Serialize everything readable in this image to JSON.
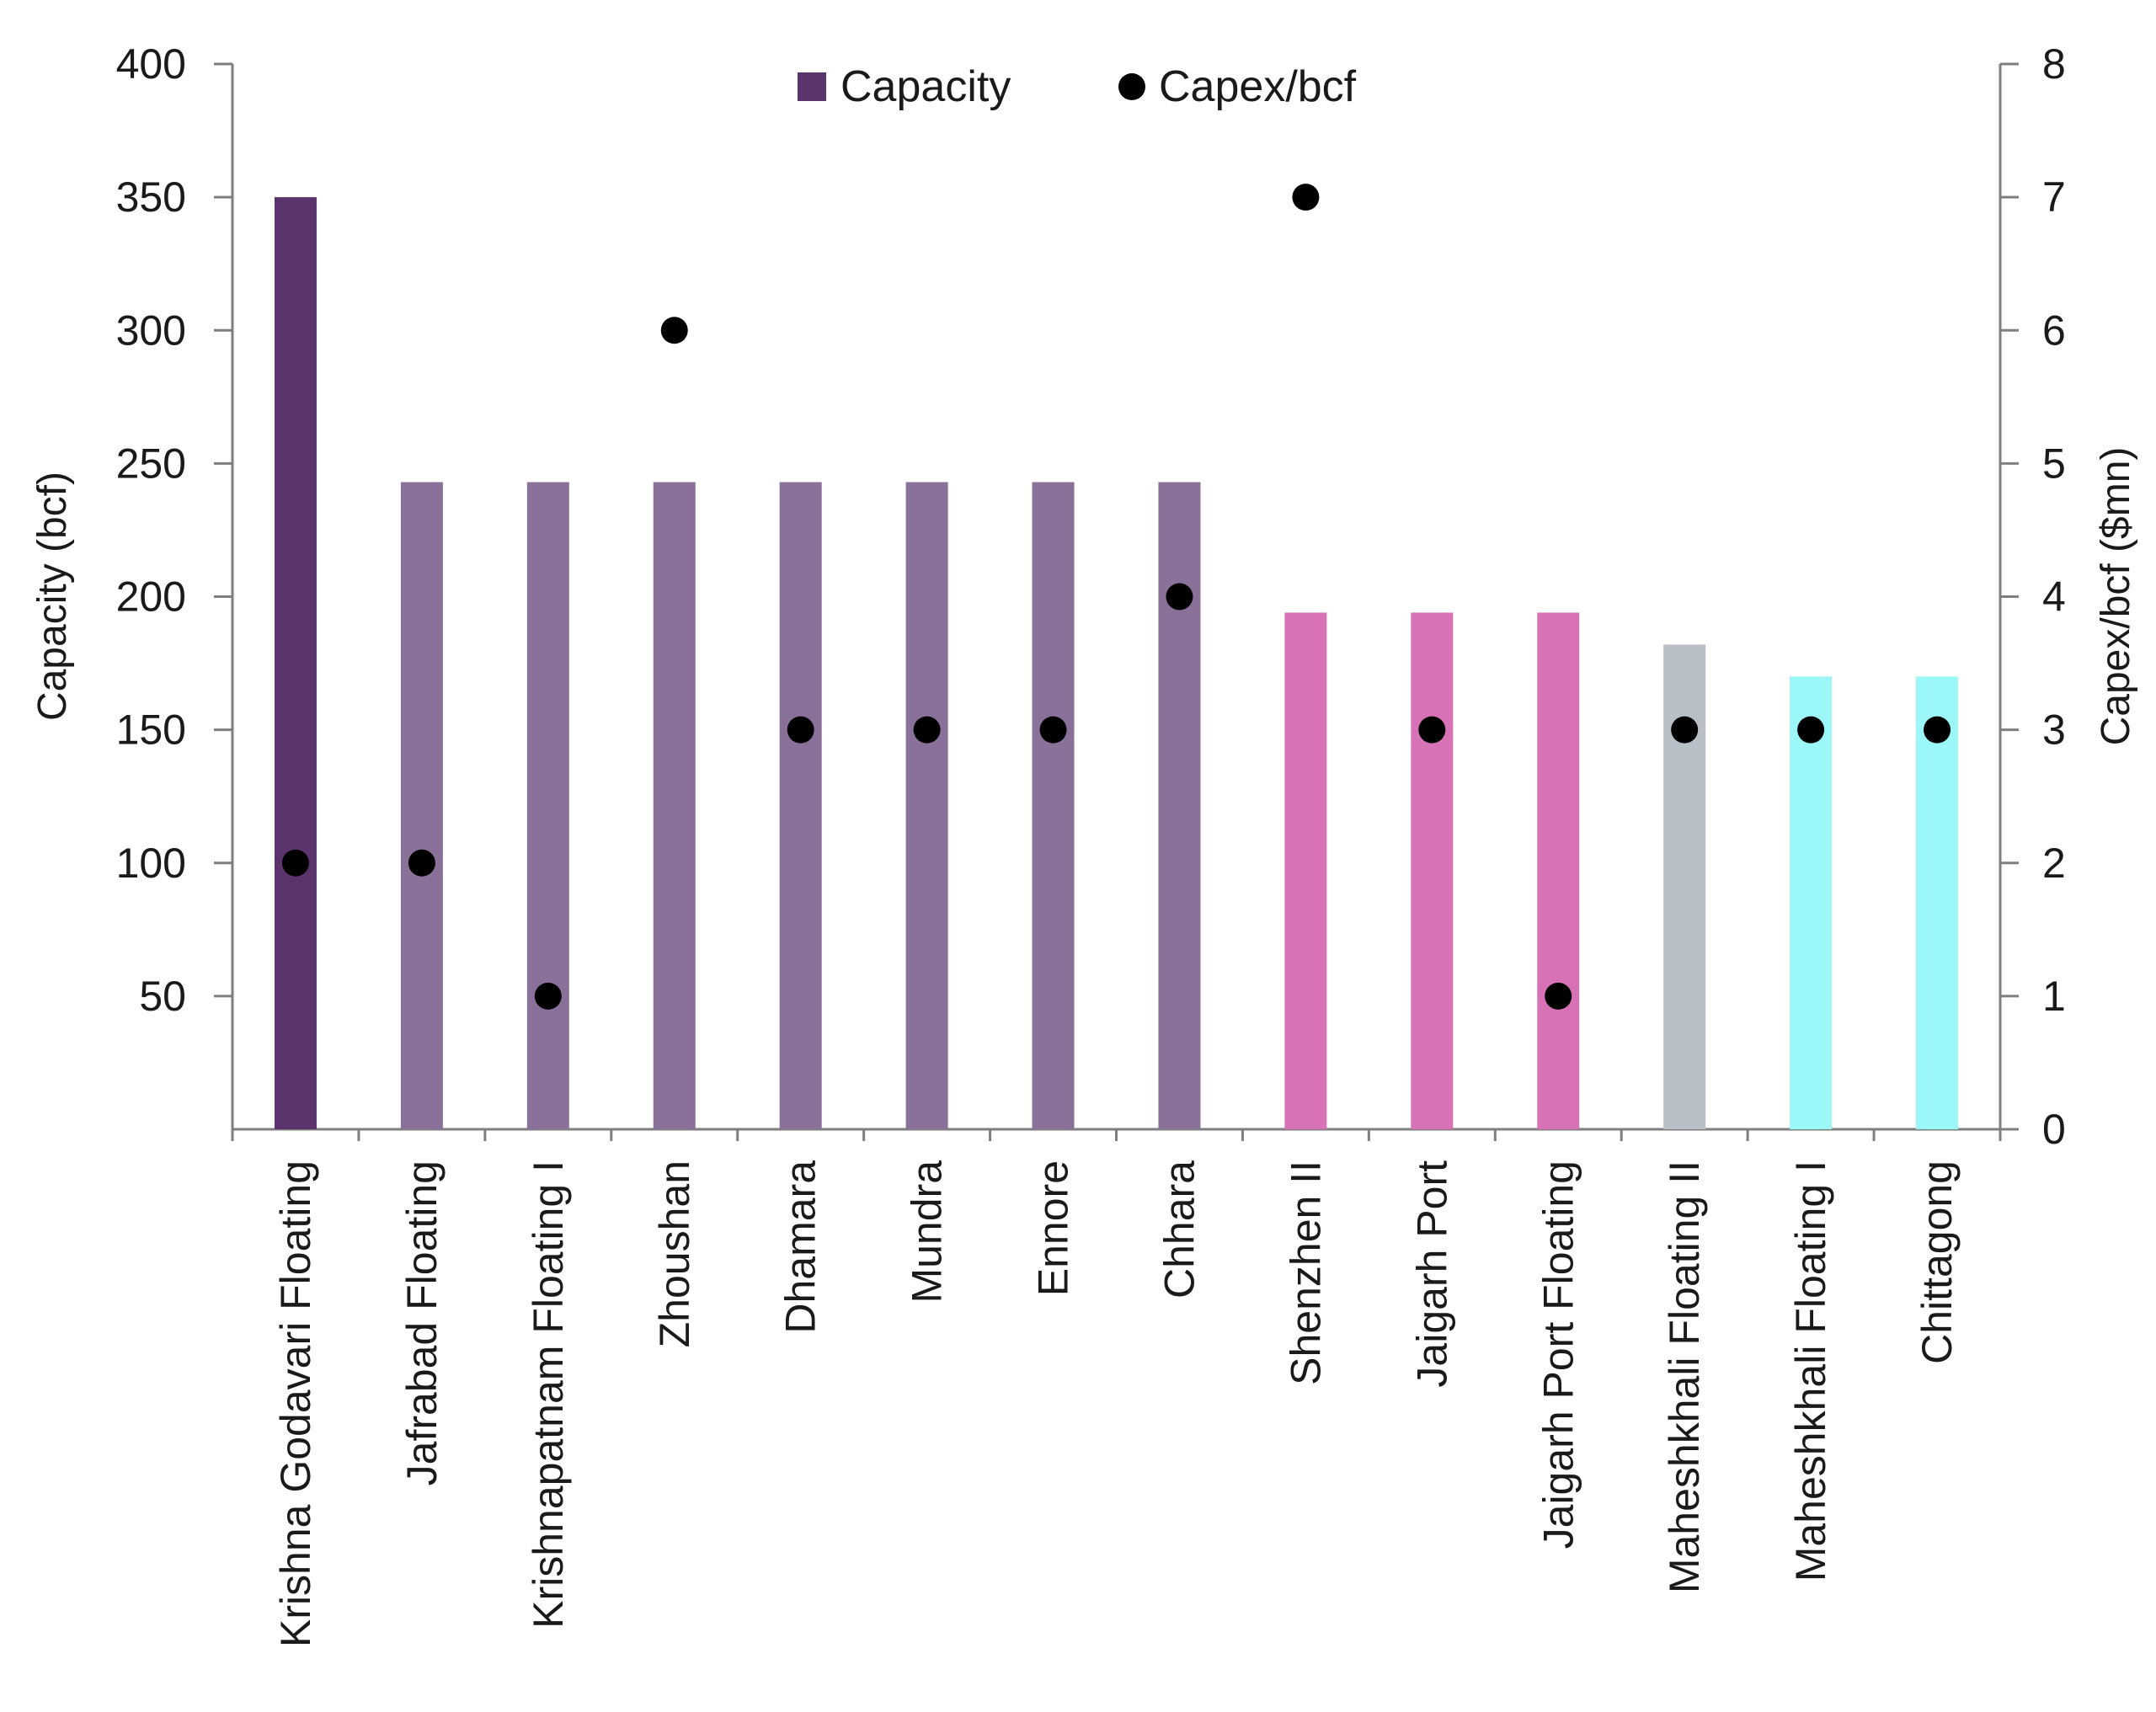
{
  "chart_data": {
    "type": "bar",
    "title": "",
    "xlabel": "",
    "ylabel": "Capacity (bcf)",
    "y2label": "Capex/bcf ($mn)",
    "ylim": [
      0,
      400
    ],
    "y2lim": [
      0,
      8
    ],
    "yticks": [
      "50",
      "100",
      "150",
      "200",
      "250",
      "300",
      "350",
      "400"
    ],
    "y2ticks": [
      "0",
      "1",
      "2",
      "3",
      "4",
      "5",
      "6",
      "7",
      "8"
    ],
    "categories": [
      "Krishna Godavari Floating",
      "Jafrabad Floating",
      "Krishnapatnam Floating I",
      "Zhoushan",
      "Dhamara",
      "Mundra",
      "Ennore",
      "Chhara",
      "Shenzhen II",
      "Jaigarh Port",
      "Jaigarh Port Floating",
      "Maheshkhali Floating II",
      "Maheshkhali Floating I",
      "Chittagong"
    ],
    "series": [
      {
        "name": "Capacity",
        "kind": "bar",
        "axis": "left",
        "values": [
          350,
          243,
          243,
          243,
          243,
          243,
          243,
          243,
          194,
          194,
          194,
          182,
          170,
          170
        ],
        "colors": [
          "#5b346e",
          "#8a7199",
          "#8a7199",
          "#8a7199",
          "#8a7199",
          "#8a7199",
          "#8a7199",
          "#8a7199",
          "#d872b6",
          "#d872b6",
          "#d872b6",
          "#b8bfc6",
          "#9bf7f8",
          "#9bf7f8"
        ]
      },
      {
        "name": "Capex/bcf",
        "kind": "scatter",
        "axis": "right",
        "values": [
          2,
          2,
          1,
          6,
          3,
          3,
          3,
          4,
          7,
          3,
          1,
          3,
          3,
          3
        ],
        "color": "#000000"
      }
    ],
    "legend": {
      "position": "top-center",
      "items": [
        {
          "label": "Capacity",
          "color": "#5b346e",
          "marker": "square"
        },
        {
          "label": "Capex/bcf",
          "color": "#000000",
          "marker": "circle"
        }
      ]
    },
    "grid": false
  }
}
